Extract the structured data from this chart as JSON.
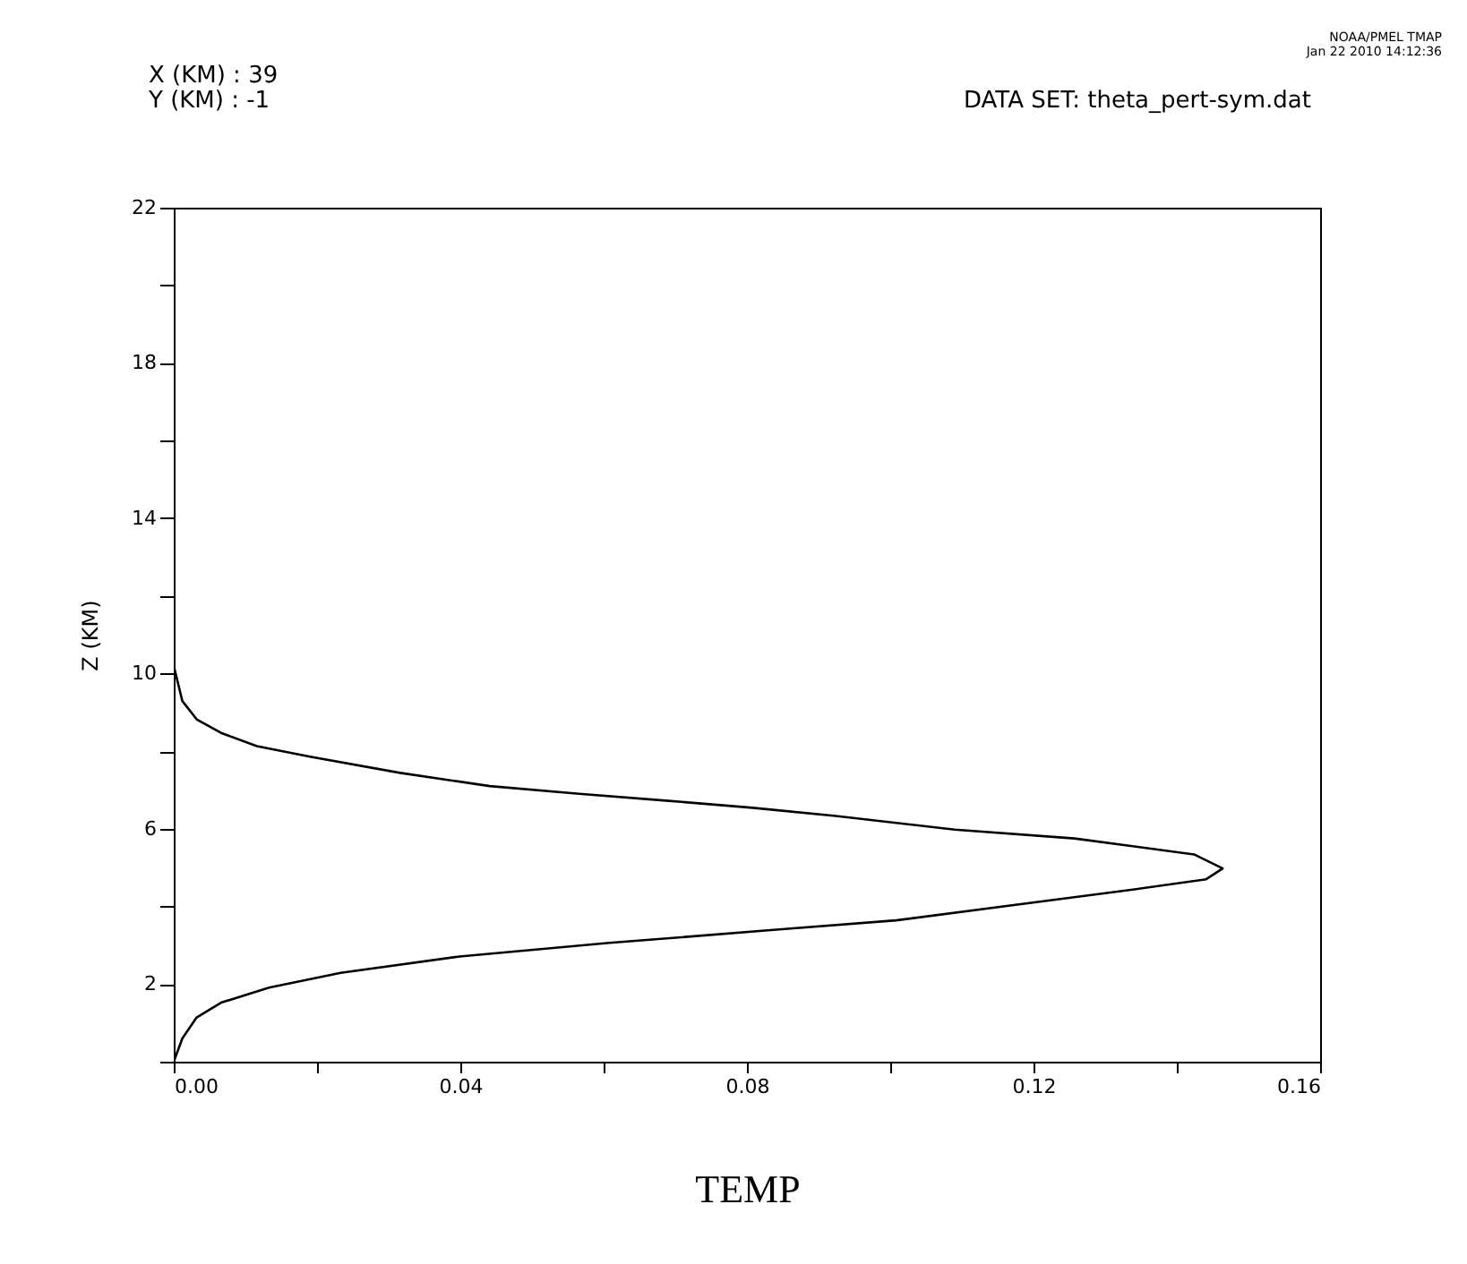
{
  "chart_data": {
    "type": "line",
    "xlabel": "TEMP",
    "ylabel": "Z (KM)",
    "annotations": [
      "X (KM) : 39",
      "Y (KM) : -1",
      "DATA SET: theta_pert-sym.dat",
      "NOAA/PMEL TMAP",
      "Jan 22 2010 14:12:36"
    ],
    "xlim": [
      0,
      0.16
    ],
    "ylim": [
      0,
      22
    ],
    "xticks": [
      {
        "value": 0,
        "label": "0.00"
      },
      {
        "value": 0.02,
        "label": null
      },
      0.04,
      {
        "value": 0.06,
        "label": null
      },
      0.08,
      {
        "value": 0.1,
        "label": null
      },
      0.12,
      {
        "value": 0.14,
        "label": null
      },
      0.16
    ],
    "yticks": [
      {
        "value": 0,
        "label": null
      },
      2,
      {
        "value": 4,
        "label": null
      },
      6,
      {
        "value": 8,
        "label": null
      },
      10,
      {
        "value": 12,
        "label": null
      },
      14,
      {
        "value": 16,
        "label": null
      },
      18,
      {
        "value": 20,
        "label": null
      },
      22
    ],
    "grid": false,
    "series": [
      {
        "color": "#000000",
        "x": [
          0,
          0.0012,
          0.0032,
          0.0066,
          0.0116,
          0.019,
          0.0316,
          0.0441,
          0.0566,
          0.0691,
          0.0808,
          0.0924,
          0.109,
          0.1257,
          0.1424,
          0.1464,
          0.1441,
          0.1341,
          0.1216,
          0.1008,
          0.0841,
          0.0608,
          0.0399,
          0.0233,
          0.0133,
          0.0066,
          0.0032,
          0.0012,
          0
        ],
        "values": [
          10.2,
          9.29,
          8.82,
          8.47,
          8.13,
          7.86,
          7.44,
          7.1,
          6.9,
          6.72,
          6.54,
          6.33,
          5.98,
          5.75,
          5.34,
          4.98,
          4.7,
          4.44,
          4.14,
          3.64,
          3.4,
          3.06,
          2.71,
          2.29,
          1.91,
          1.52,
          1.14,
          0.6,
          0
        ]
      }
    ]
  }
}
